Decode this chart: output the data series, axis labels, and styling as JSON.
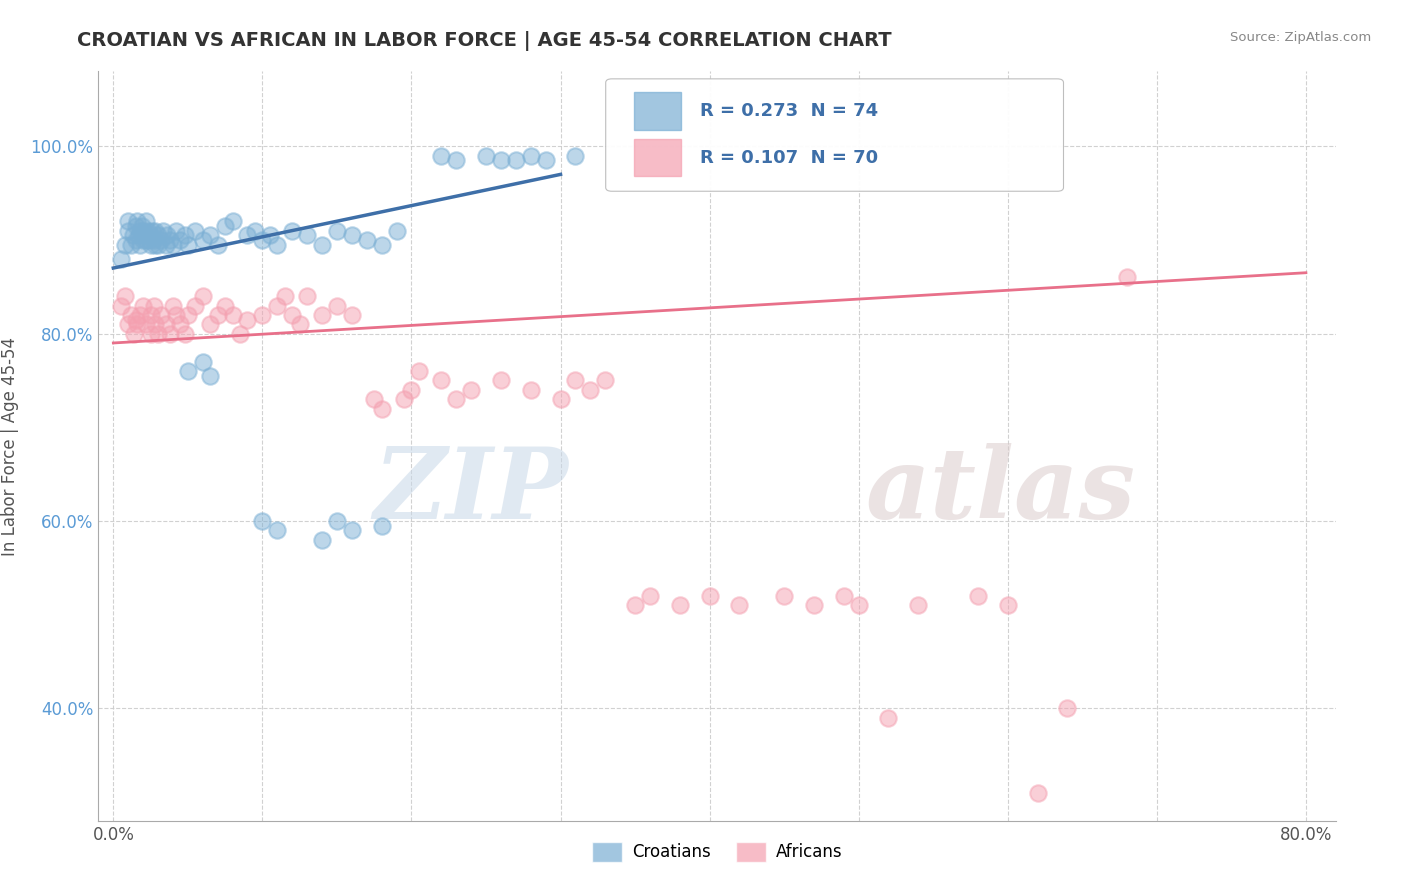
{
  "title": "CROATIAN VS AFRICAN IN LABOR FORCE | AGE 45-54 CORRELATION CHART",
  "source": "Source: ZipAtlas.com",
  "ylabel": "In Labor Force | Age 45-54",
  "xlim": [
    -0.01,
    0.82
  ],
  "ylim": [
    0.28,
    1.08
  ],
  "xtick_vals": [
    0.0,
    0.1,
    0.2,
    0.3,
    0.4,
    0.5,
    0.6,
    0.7,
    0.8
  ],
  "xtick_labels": [
    "0.0%",
    "",
    "",
    "",
    "",
    "",
    "",
    "",
    "80.0%"
  ],
  "ytick_vals": [
    0.4,
    0.6,
    0.8,
    1.0
  ],
  "ytick_labels": [
    "40.0%",
    "60.0%",
    "80.0%",
    "100.0%"
  ],
  "croatian_R": 0.273,
  "croatian_N": 74,
  "african_R": 0.107,
  "african_N": 70,
  "blue_color": "#7BAFD4",
  "pink_color": "#F4A0B0",
  "blue_line_color": "#3E6FA8",
  "pink_line_color": "#E8708A",
  "watermark_zip": "ZIP",
  "watermark_atlas": "atlas",
  "legend_croatians": "Croatians",
  "legend_africans": "Africans",
  "cr_x": [
    0.005,
    0.008,
    0.01,
    0.01,
    0.012,
    0.013,
    0.015,
    0.015,
    0.016,
    0.017,
    0.018,
    0.018,
    0.019,
    0.02,
    0.02,
    0.021,
    0.022,
    0.022,
    0.023,
    0.024,
    0.025,
    0.025,
    0.026,
    0.027,
    0.028,
    0.028,
    0.03,
    0.03,
    0.032,
    0.033,
    0.035,
    0.036,
    0.038,
    0.04,
    0.042,
    0.045,
    0.048,
    0.05,
    0.055,
    0.06,
    0.065,
    0.07,
    0.075,
    0.08,
    0.09,
    0.095,
    0.1,
    0.105,
    0.11,
    0.12,
    0.13,
    0.14,
    0.15,
    0.16,
    0.17,
    0.18,
    0.19,
    0.05,
    0.06,
    0.065,
    0.1,
    0.11,
    0.22,
    0.23,
    0.25,
    0.26,
    0.27,
    0.28,
    0.29,
    0.31,
    0.14,
    0.15,
    0.16,
    0.18
  ],
  "cr_y": [
    0.88,
    0.895,
    0.91,
    0.92,
    0.895,
    0.905,
    0.9,
    0.915,
    0.92,
    0.905,
    0.895,
    0.91,
    0.915,
    0.9,
    0.91,
    0.905,
    0.9,
    0.92,
    0.91,
    0.9,
    0.895,
    0.905,
    0.91,
    0.9,
    0.895,
    0.91,
    0.895,
    0.905,
    0.9,
    0.91,
    0.895,
    0.905,
    0.9,
    0.895,
    0.91,
    0.9,
    0.905,
    0.895,
    0.91,
    0.9,
    0.905,
    0.895,
    0.915,
    0.92,
    0.905,
    0.91,
    0.9,
    0.905,
    0.895,
    0.91,
    0.905,
    0.895,
    0.91,
    0.905,
    0.9,
    0.895,
    0.91,
    0.76,
    0.77,
    0.755,
    0.6,
    0.59,
    0.99,
    0.985,
    0.99,
    0.985,
    0.985,
    0.99,
    0.985,
    0.99,
    0.58,
    0.6,
    0.59,
    0.595
  ],
  "af_x": [
    0.005,
    0.008,
    0.01,
    0.012,
    0.014,
    0.015,
    0.016,
    0.018,
    0.02,
    0.022,
    0.025,
    0.025,
    0.027,
    0.028,
    0.03,
    0.032,
    0.035,
    0.038,
    0.04,
    0.042,
    0.045,
    0.048,
    0.05,
    0.055,
    0.06,
    0.065,
    0.07,
    0.075,
    0.08,
    0.085,
    0.09,
    0.1,
    0.11,
    0.115,
    0.12,
    0.125,
    0.13,
    0.14,
    0.15,
    0.16,
    0.175,
    0.18,
    0.195,
    0.2,
    0.205,
    0.22,
    0.23,
    0.24,
    0.26,
    0.28,
    0.3,
    0.31,
    0.32,
    0.33,
    0.35,
    0.36,
    0.38,
    0.4,
    0.42,
    0.45,
    0.47,
    0.49,
    0.5,
    0.52,
    0.54,
    0.58,
    0.6,
    0.62,
    0.64,
    0.68
  ],
  "af_y": [
    0.83,
    0.84,
    0.81,
    0.82,
    0.8,
    0.815,
    0.81,
    0.82,
    0.83,
    0.81,
    0.8,
    0.82,
    0.83,
    0.81,
    0.8,
    0.82,
    0.81,
    0.8,
    0.83,
    0.82,
    0.81,
    0.8,
    0.82,
    0.83,
    0.84,
    0.81,
    0.82,
    0.83,
    0.82,
    0.8,
    0.815,
    0.82,
    0.83,
    0.84,
    0.82,
    0.81,
    0.84,
    0.82,
    0.83,
    0.82,
    0.73,
    0.72,
    0.73,
    0.74,
    0.76,
    0.75,
    0.73,
    0.74,
    0.75,
    0.74,
    0.73,
    0.75,
    0.74,
    0.75,
    0.51,
    0.52,
    0.51,
    0.52,
    0.51,
    0.52,
    0.51,
    0.52,
    0.51,
    0.39,
    0.51,
    0.52,
    0.51,
    0.31,
    0.4,
    0.86
  ]
}
